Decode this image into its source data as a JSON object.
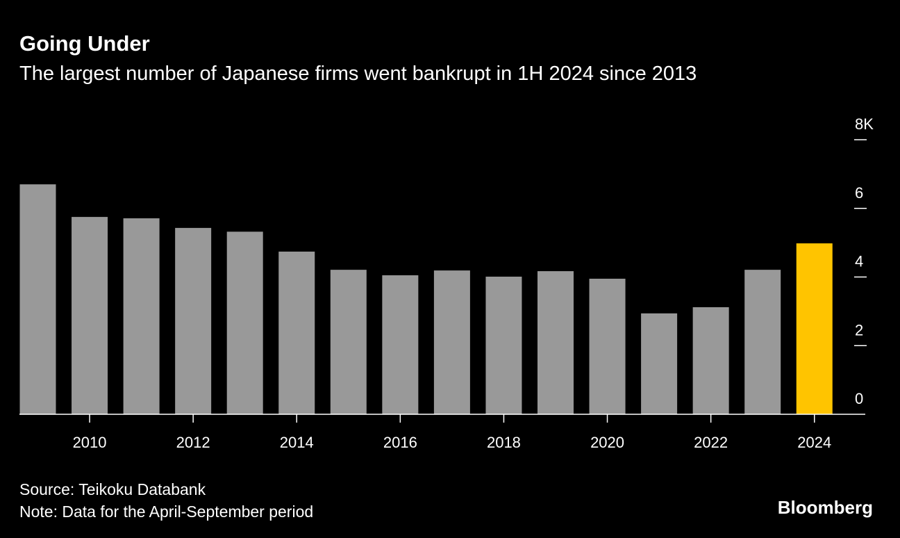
{
  "chart_data": {
    "type": "bar",
    "title": "Going Under",
    "subtitle": "The largest number of Japanese firms went bankrupt in 1H 2024 since 2013",
    "categories": [
      null,
      "2010",
      null,
      "2012",
      null,
      "2014",
      null,
      "2016",
      null,
      "2018",
      null,
      "2020",
      null,
      "2022",
      null,
      "2024"
    ],
    "values": [
      6.7,
      5.75,
      5.71,
      5.43,
      5.32,
      4.74,
      4.21,
      4.05,
      4.19,
      4.01,
      4.17,
      3.95,
      2.94,
      3.12,
      4.21,
      4.98
    ],
    "colors": [
      "#999999",
      "#999999",
      "#999999",
      "#999999",
      "#999999",
      "#999999",
      "#999999",
      "#999999",
      "#999999",
      "#999999",
      "#999999",
      "#999999",
      "#999999",
      "#999999",
      "#999999",
      "#ffc400"
    ],
    "ylim": [
      0,
      8
    ],
    "yticks": [
      0,
      2,
      4,
      6,
      {
        "value": 8,
        "label": "8K"
      }
    ],
    "source": "Source: Teikoku Databank",
    "note": "Note: Data for the April-September period",
    "brand": "Bloomberg"
  }
}
